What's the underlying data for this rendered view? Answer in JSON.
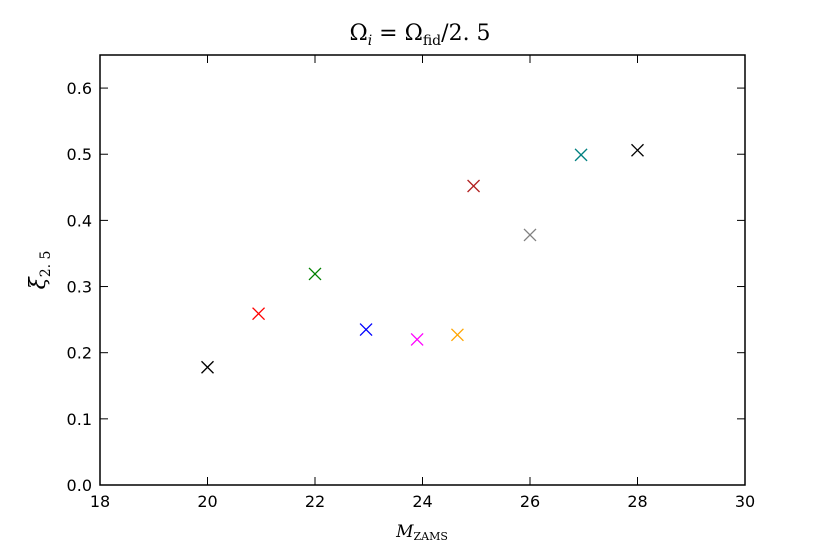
{
  "chart_data": {
    "type": "scatter",
    "title_main": "Ω",
    "title_sub_i": "i",
    "title_eq": " = Ω",
    "title_sub_fid": "fid",
    "title_tail": "/2. 5",
    "xlabel_main": "M",
    "xlabel_sub": "ZAMS",
    "ylabel_main": "ξ",
    "ylabel_sub": "2. 5",
    "xlim": [
      18,
      30
    ],
    "ylim": [
      0.0,
      0.65
    ],
    "xticks": [
      "18",
      "20",
      "22",
      "24",
      "26",
      "28",
      "30"
    ],
    "yticks": [
      "0.0",
      "0.1",
      "0.2",
      "0.3",
      "0.4",
      "0.5",
      "0.6"
    ],
    "grid": false,
    "marker": "x",
    "points": [
      {
        "x": 20.0,
        "y": 0.178,
        "color": "#000000"
      },
      {
        "x": 20.95,
        "y": 0.259,
        "color": "#ff0000"
      },
      {
        "x": 22.0,
        "y": 0.319,
        "color": "#008000"
      },
      {
        "x": 22.95,
        "y": 0.235,
        "color": "#0000ff"
      },
      {
        "x": 23.9,
        "y": 0.22,
        "color": "#ff00ff"
      },
      {
        "x": 24.65,
        "y": 0.227,
        "color": "#ffa500"
      },
      {
        "x": 24.95,
        "y": 0.452,
        "color": "#b22222"
      },
      {
        "x": 26.0,
        "y": 0.378,
        "color": "#808080"
      },
      {
        "x": 26.95,
        "y": 0.499,
        "color": "#008080"
      },
      {
        "x": 28.0,
        "y": 0.506,
        "color": "#000000"
      }
    ]
  }
}
